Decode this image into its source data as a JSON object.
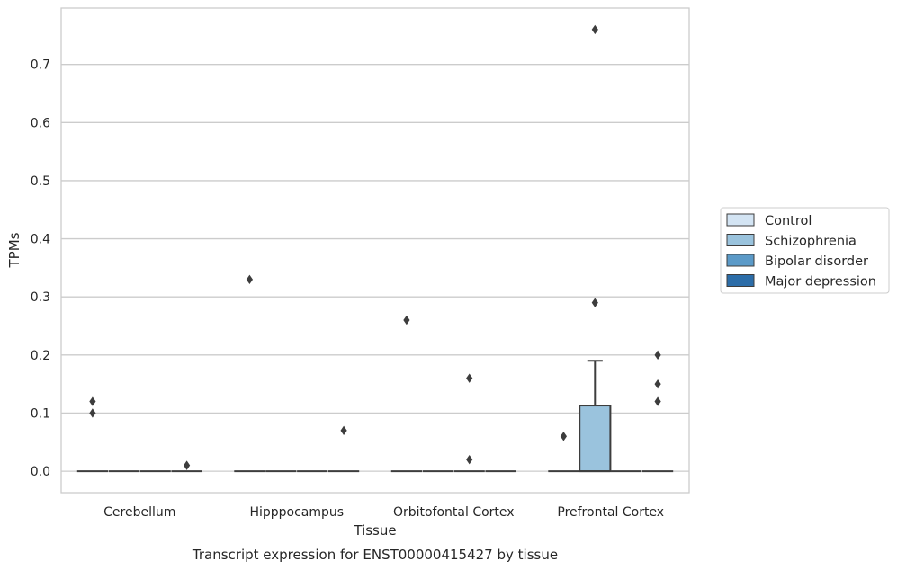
{
  "chart_data": {
    "type": "box",
    "title": "Transcript expression for ENST00000415427 by tissue",
    "xlabel": "Tissue",
    "ylabel": "TPMs",
    "ylim": [
      -0.037,
      0.797
    ],
    "yticks": [
      0.0,
      0.1,
      0.2,
      0.3,
      0.4,
      0.5,
      0.6,
      0.7
    ],
    "ytick_labels": [
      "0.0",
      "0.1",
      "0.2",
      "0.3",
      "0.4",
      "0.5",
      "0.6",
      "0.7"
    ],
    "grid": "horizontal",
    "legend_position": "right",
    "categories": [
      "Cerebellum",
      "Hipppocampus",
      "Orbitofontal Cortex",
      "Prefrontal Cortex"
    ],
    "series": [
      {
        "name": "Control",
        "color": "#d3e4f3",
        "boxes": [
          {
            "q1": 0,
            "median": 0,
            "q3": 0,
            "whisker_low": 0,
            "whisker_high": 0,
            "outliers": [
              0.1,
              0.12
            ]
          },
          {
            "q1": 0,
            "median": 0,
            "q3": 0,
            "whisker_low": 0,
            "whisker_high": 0,
            "outliers": [
              0.33
            ]
          },
          {
            "q1": 0,
            "median": 0,
            "q3": 0,
            "whisker_low": 0,
            "whisker_high": 0,
            "outliers": [
              0.26
            ]
          },
          {
            "q1": 0,
            "median": 0,
            "q3": 0,
            "whisker_low": 0,
            "whisker_high": 0,
            "outliers": [
              0.06
            ]
          }
        ]
      },
      {
        "name": "Schizophrenia",
        "color": "#9ac3dd",
        "boxes": [
          {
            "q1": 0,
            "median": 0,
            "q3": 0,
            "whisker_low": 0,
            "whisker_high": 0,
            "outliers": []
          },
          {
            "q1": 0,
            "median": 0,
            "q3": 0,
            "whisker_low": 0,
            "whisker_high": 0,
            "outliers": []
          },
          {
            "q1": 0,
            "median": 0,
            "q3": 0,
            "whisker_low": 0,
            "whisker_high": 0,
            "outliers": []
          },
          {
            "q1": 0,
            "median": 0,
            "q3": 0.113,
            "whisker_low": 0,
            "whisker_high": 0.19,
            "outliers": [
              0.29,
              0.76
            ]
          }
        ]
      },
      {
        "name": "Bipolar disorder",
        "color": "#5b9ac8",
        "boxes": [
          {
            "q1": 0,
            "median": 0,
            "q3": 0,
            "whisker_low": 0,
            "whisker_high": 0,
            "outliers": []
          },
          {
            "q1": 0,
            "median": 0,
            "q3": 0,
            "whisker_low": 0,
            "whisker_high": 0,
            "outliers": []
          },
          {
            "q1": 0,
            "median": 0,
            "q3": 0,
            "whisker_low": 0,
            "whisker_high": 0,
            "outliers": [
              0.02,
              0.16
            ]
          },
          {
            "q1": 0,
            "median": 0,
            "q3": 0,
            "whisker_low": 0,
            "whisker_high": 0,
            "outliers": []
          }
        ]
      },
      {
        "name": "Major depression",
        "color": "#2c6da8",
        "boxes": [
          {
            "q1": 0,
            "median": 0,
            "q3": 0,
            "whisker_low": 0,
            "whisker_high": 0,
            "outliers": [
              0.01
            ]
          },
          {
            "q1": 0,
            "median": 0,
            "q3": 0,
            "whisker_low": 0,
            "whisker_high": 0,
            "outliers": [
              0.07
            ]
          },
          {
            "q1": 0,
            "median": 0,
            "q3": 0,
            "whisker_low": 0,
            "whisker_high": 0,
            "outliers": []
          },
          {
            "q1": 0,
            "median": 0,
            "q3": 0,
            "whisker_low": 0,
            "whisker_high": 0,
            "outliers": [
              0.12,
              0.15,
              0.2
            ]
          }
        ]
      }
    ]
  }
}
